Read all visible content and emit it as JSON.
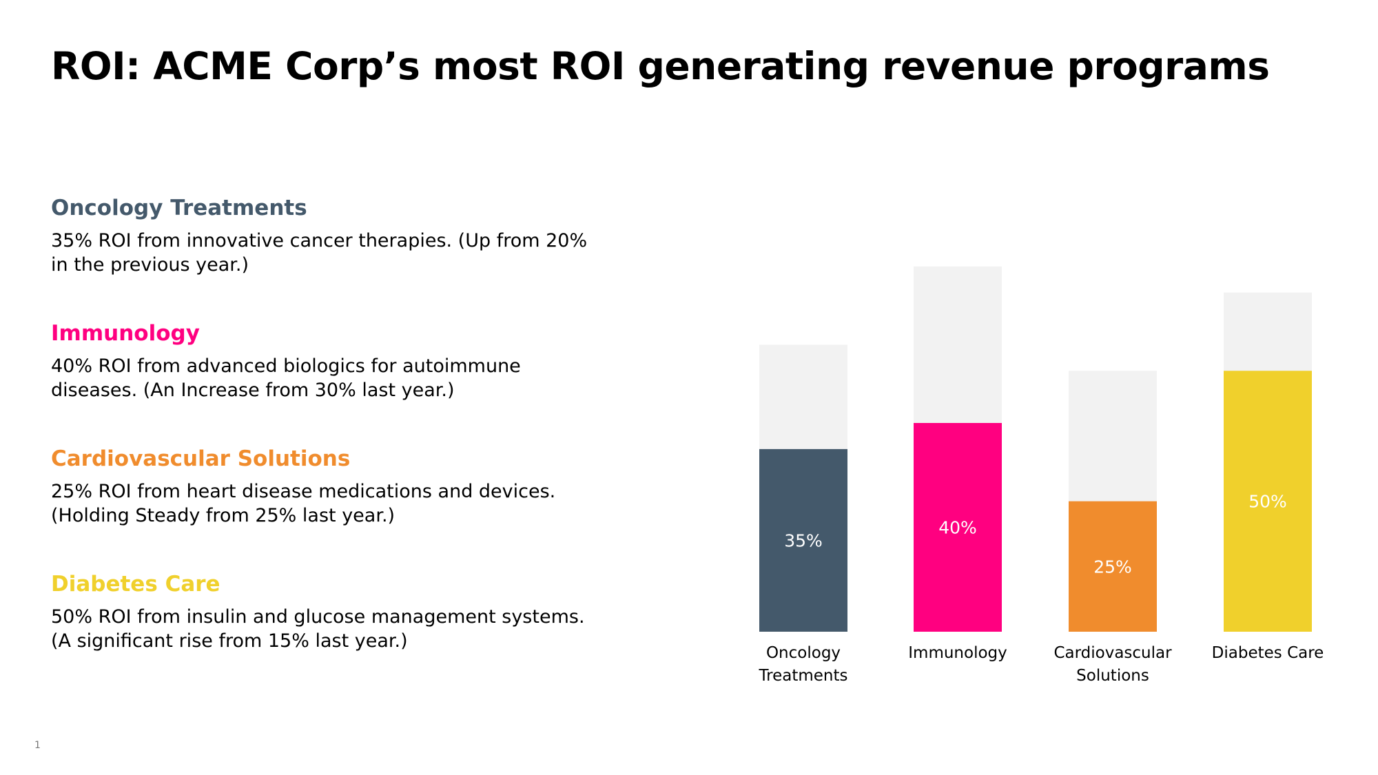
{
  "title": "ROI: ACME Corp’s most ROI generating revenue programs",
  "slide_number": "1",
  "programs": [
    {
      "name": "Oncology Treatments",
      "color": "#44596B",
      "line1": "35% ROI from innovative cancer therapies. (Up from 20%",
      "line2": "in the previous year.)"
    },
    {
      "name": "Immunology",
      "color": "#FF0080",
      "line1": "40% ROI from advanced biologics for autoimmune",
      "line2": "diseases. (An Increase from 30% last year.)"
    },
    {
      "name": "Cardiovascular Solutions",
      "color": "#F08C2D",
      "line1": "25% ROI from heart disease medications and devices.",
      "line2": "(Holding Steady from 25% last year.)"
    },
    {
      "name": "Diabetes Care",
      "color": "#F0D02C",
      "line1": "50% ROI from insulin and glucose management systems.",
      "line2": "(A significant rise from 15% last year.)"
    }
  ],
  "chart_data": {
    "type": "bar",
    "categories": [
      [
        "Oncology",
        "Treatments"
      ],
      [
        "Immunology"
      ],
      [
        "Cardiovascular",
        "Solutions"
      ],
      [
        "Diabetes Care"
      ]
    ],
    "values": [
      35,
      40,
      25,
      50
    ],
    "data_labels": [
      "35%",
      "40%",
      "25%",
      "50%"
    ],
    "track_values": [
      55,
      70,
      50,
      65
    ],
    "colors": [
      "#44596B",
      "#FF0080",
      "#F08C2D",
      "#F0D02C"
    ],
    "track_color": "#F2F2F2",
    "ylim": [
      0,
      70
    ],
    "title": "",
    "xlabel": "",
    "ylabel": "",
    "grid": false
  }
}
